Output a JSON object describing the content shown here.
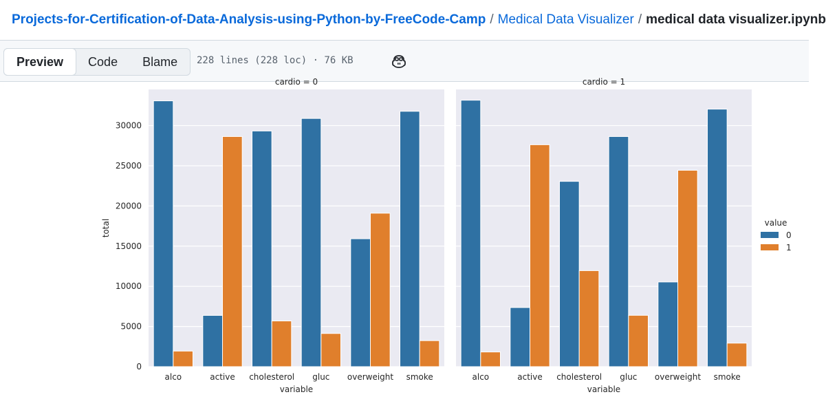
{
  "breadcrumb": {
    "repo": "Projects-for-Certification-of-Data-Analysis-using-Python-by-FreeCode-Camp",
    "folder": "Medical Data Visualizer",
    "file": "medical data visualizer.ipynb",
    "separator": "/"
  },
  "toolbar": {
    "tabs": [
      "Preview",
      "Code",
      "Blame"
    ],
    "active_tab": "Preview",
    "meta": "228 lines (228 loc) · 76 KB",
    "copilot_icon": "copilot-icon"
  },
  "chart_data": {
    "type": "bar",
    "facet_titles": [
      "cardio = 0",
      "cardio = 1"
    ],
    "categories": [
      "alco",
      "active",
      "cholesterol",
      "gluc",
      "overweight",
      "smoke"
    ],
    "xlabel": "variable",
    "ylabel": "total",
    "ylim": [
      0,
      34500
    ],
    "yticks": [
      0,
      5000,
      10000,
      15000,
      20000,
      25000,
      30000
    ],
    "legend": {
      "title": "value",
      "placement": "right",
      "entries": [
        "0",
        "1"
      ]
    },
    "colors": {
      "0": "#2f71a3",
      "1": "#e07f2c",
      "background": "#eaeaf2"
    },
    "grid": true,
    "panels": [
      {
        "facet": "cardio = 0",
        "series": [
          {
            "name": "0",
            "values": [
              33080,
              6380,
              29330,
              30890,
              15920,
              31780
            ]
          },
          {
            "name": "1",
            "values": [
              1940,
              28640,
              5690,
              4130,
              19100,
              3240
            ]
          }
        ]
      },
      {
        "facet": "cardio = 1",
        "series": [
          {
            "name": "0",
            "values": [
              33160,
              7360,
              23060,
              28640,
              10540,
              32050
            ]
          },
          {
            "name": "1",
            "values": [
              1830,
              27620,
              11950,
              6390,
              24440,
              2930
            ]
          }
        ]
      }
    ]
  }
}
